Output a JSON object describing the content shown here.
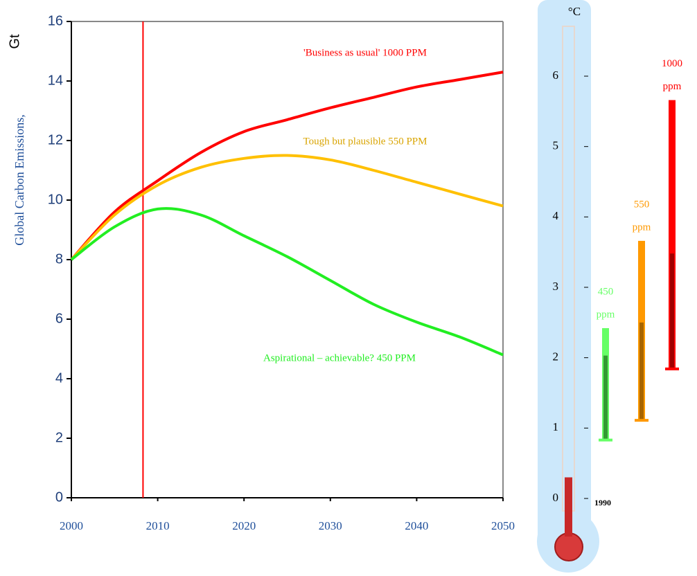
{
  "chart_data": [
    {
      "type": "line",
      "y_label": "Global Carbon Emissions,",
      "y_unit": "Gt",
      "x": [
        2000,
        2005,
        2010,
        2015,
        2020,
        2025,
        2030,
        2035,
        2040,
        2045,
        2050
      ],
      "series": [
        {
          "name": "'Business as usual'  1000 PPM",
          "color": "#ff0000",
          "values": [
            8,
            9.6,
            10.65,
            11.6,
            12.3,
            12.7,
            13.1,
            13.45,
            13.8,
            14.05,
            14.3
          ]
        },
        {
          "name": "Tough but plausible 550 PPM",
          "color": "#ffc000",
          "values": [
            8,
            9.5,
            10.5,
            11.1,
            11.4,
            11.5,
            11.35,
            11.0,
            10.6,
            10.2,
            9.8
          ]
        },
        {
          "name": "Aspirational – achievable? 450 PPM",
          "color": "#22ee22",
          "values": [
            8,
            9.1,
            9.7,
            9.5,
            8.8,
            8.1,
            7.3,
            6.5,
            5.9,
            5.4,
            4.8
          ]
        }
      ],
      "marker_x": 2008.3,
      "marker_color": "#ff0000",
      "xlim": [
        2000,
        2050
      ],
      "xticks": [
        2000,
        2010,
        2020,
        2030,
        2040,
        2050
      ],
      "ylim": [
        0,
        16
      ],
      "yticks": [
        0,
        2,
        4,
        6,
        8,
        10,
        12,
        14,
        16
      ]
    },
    {
      "type": "thermometer",
      "title": "°C",
      "baseline_label": "1990",
      "mercury": 0.3,
      "ylim": [
        0,
        6
      ],
      "yticks": [
        0,
        1,
        2,
        3,
        4,
        5,
        6
      ],
      "series": [
        {
          "name_lines": [
            "450",
            "ppm"
          ],
          "color": "#66ff66",
          "dark": "#339933",
          "low": 0.83,
          "mid": 2.03,
          "high": 2.42
        },
        {
          "name_lines": [
            "550",
            "ppm"
          ],
          "color": "#ff9900",
          "dark": "#a86500",
          "low": 1.11,
          "mid": 2.5,
          "high": 3.66
        },
        {
          "name_lines": [
            "1000",
            "ppm"
          ],
          "color": "#ff0000",
          "dark": "#a00000",
          "low": 1.84,
          "mid": 3.48,
          "high": 5.66
        }
      ]
    }
  ]
}
